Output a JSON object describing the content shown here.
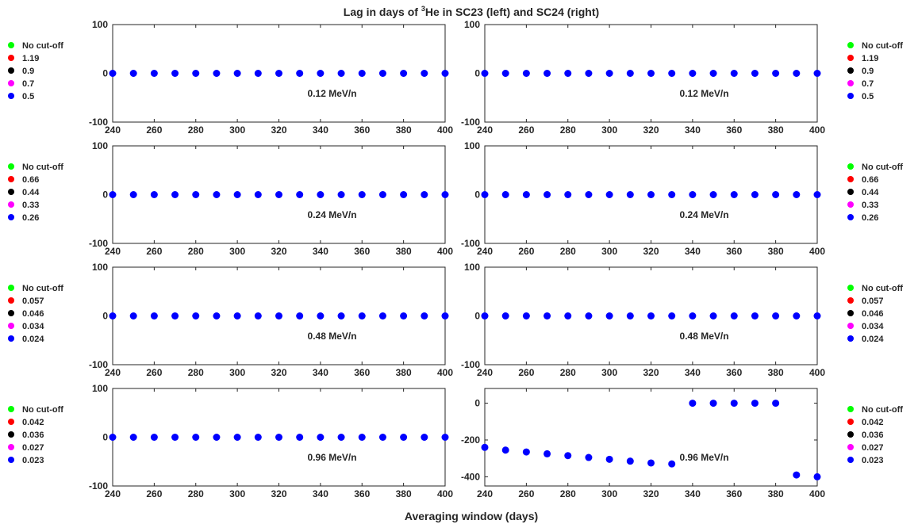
{
  "figure": {
    "title_prefix": "Lag in days of ",
    "title_sup": "3",
    "title_suffix": "He in SC23 (left) and SC24 (right)",
    "xlabel": "Averaging window (days)"
  },
  "legend_colors": [
    "#00ff00",
    "#ff0000",
    "#000000",
    "#ff00ff",
    "#0000ff"
  ],
  "chart_data": [
    {
      "type": "scatter",
      "row": 0,
      "col": 0,
      "energy_label": "0.12 MeV/n",
      "legend": [
        "No cut-off",
        "1.19",
        "0.9",
        "0.7",
        "0.5"
      ],
      "x": [
        240,
        250,
        260,
        270,
        280,
        290,
        300,
        310,
        320,
        330,
        340,
        350,
        360,
        370,
        380,
        390,
        400
      ],
      "y": [
        0,
        0,
        0,
        0,
        0,
        0,
        0,
        0,
        0,
        0,
        0,
        0,
        0,
        0,
        0,
        0,
        0
      ],
      "xlim": [
        240,
        400
      ],
      "ylim": [
        -100,
        100
      ],
      "xticks": [
        240,
        260,
        280,
        300,
        320,
        340,
        360,
        380,
        400
      ],
      "yticks": [
        -100,
        0,
        100
      ]
    },
    {
      "type": "scatter",
      "row": 0,
      "col": 1,
      "energy_label": "0.12 MeV/n",
      "legend": [
        "No cut-off",
        "1.19",
        "0.9",
        "0.7",
        "0.5"
      ],
      "x": [
        240,
        250,
        260,
        270,
        280,
        290,
        300,
        310,
        320,
        330,
        340,
        350,
        360,
        370,
        380,
        390,
        400
      ],
      "y": [
        0,
        0,
        0,
        0,
        0,
        0,
        0,
        0,
        0,
        0,
        0,
        0,
        0,
        0,
        0,
        0,
        0
      ],
      "xlim": [
        240,
        400
      ],
      "ylim": [
        -100,
        100
      ],
      "xticks": [
        240,
        260,
        280,
        300,
        320,
        340,
        360,
        380,
        400
      ],
      "yticks": [
        -100,
        0,
        100
      ]
    },
    {
      "type": "scatter",
      "row": 1,
      "col": 0,
      "energy_label": "0.24 MeV/n",
      "legend": [
        "No cut-off",
        "0.66",
        "0.44",
        "0.33",
        "0.26"
      ],
      "x": [
        240,
        250,
        260,
        270,
        280,
        290,
        300,
        310,
        320,
        330,
        340,
        350,
        360,
        370,
        380,
        390,
        400
      ],
      "y": [
        0,
        0,
        0,
        0,
        0,
        0,
        0,
        0,
        0,
        0,
        0,
        0,
        0,
        0,
        0,
        0,
        0
      ],
      "xlim": [
        240,
        400
      ],
      "ylim": [
        -100,
        100
      ],
      "xticks": [
        240,
        260,
        280,
        300,
        320,
        340,
        360,
        380,
        400
      ],
      "yticks": [
        -100,
        0,
        100
      ]
    },
    {
      "type": "scatter",
      "row": 1,
      "col": 1,
      "energy_label": "0.24 MeV/n",
      "legend": [
        "No cut-off",
        "0.66",
        "0.44",
        "0.33",
        "0.26"
      ],
      "x": [
        240,
        250,
        260,
        270,
        280,
        290,
        300,
        310,
        320,
        330,
        340,
        350,
        360,
        370,
        380,
        390,
        400
      ],
      "y": [
        0,
        0,
        0,
        0,
        0,
        0,
        0,
        0,
        0,
        0,
        0,
        0,
        0,
        0,
        0,
        0,
        0
      ],
      "xlim": [
        240,
        400
      ],
      "ylim": [
        -100,
        100
      ],
      "xticks": [
        240,
        260,
        280,
        300,
        320,
        340,
        360,
        380,
        400
      ],
      "yticks": [
        -100,
        0,
        100
      ]
    },
    {
      "type": "scatter",
      "row": 2,
      "col": 0,
      "energy_label": "0.48 MeV/n",
      "legend": [
        "No cut-off",
        "0.057",
        "0.046",
        "0.034",
        "0.024"
      ],
      "x": [
        240,
        250,
        260,
        270,
        280,
        290,
        300,
        310,
        320,
        330,
        340,
        350,
        360,
        370,
        380,
        390,
        400
      ],
      "y": [
        0,
        0,
        0,
        0,
        0,
        0,
        0,
        0,
        0,
        0,
        0,
        0,
        0,
        0,
        0,
        0,
        0
      ],
      "xlim": [
        240,
        400
      ],
      "ylim": [
        -100,
        100
      ],
      "xticks": [
        240,
        260,
        280,
        300,
        320,
        340,
        360,
        380,
        400
      ],
      "yticks": [
        -100,
        0,
        100
      ]
    },
    {
      "type": "scatter",
      "row": 2,
      "col": 1,
      "energy_label": "0.48 MeV/n",
      "legend": [
        "No cut-off",
        "0.057",
        "0.046",
        "0.034",
        "0.024"
      ],
      "x": [
        240,
        250,
        260,
        270,
        280,
        290,
        300,
        310,
        320,
        330,
        340,
        350,
        360,
        370,
        380,
        390,
        400
      ],
      "y": [
        0,
        0,
        0,
        0,
        0,
        0,
        0,
        0,
        0,
        0,
        0,
        0,
        0,
        0,
        0,
        0,
        0
      ],
      "xlim": [
        240,
        400
      ],
      "ylim": [
        -100,
        100
      ],
      "xticks": [
        240,
        260,
        280,
        300,
        320,
        340,
        360,
        380,
        400
      ],
      "yticks": [
        -100,
        0,
        100
      ]
    },
    {
      "type": "scatter",
      "row": 3,
      "col": 0,
      "energy_label": "0.96 MeV/n",
      "legend": [
        "No cut-off",
        "0.042",
        "0.036",
        "0.027",
        "0.023"
      ],
      "x": [
        240,
        250,
        260,
        270,
        280,
        290,
        300,
        310,
        320,
        330,
        340,
        350,
        360,
        370,
        380,
        390,
        400
      ],
      "y": [
        0,
        0,
        0,
        0,
        0,
        0,
        0,
        0,
        0,
        0,
        0,
        0,
        0,
        0,
        0,
        0,
        0
      ],
      "xlim": [
        240,
        400
      ],
      "ylim": [
        -100,
        100
      ],
      "xticks": [
        240,
        260,
        280,
        300,
        320,
        340,
        360,
        380,
        400
      ],
      "yticks": [
        -100,
        0,
        100
      ]
    },
    {
      "type": "scatter",
      "row": 3,
      "col": 1,
      "energy_label": "0.96 MeV/n",
      "legend": [
        "No cut-off",
        "0.042",
        "0.036",
        "0.027",
        "0.023"
      ],
      "x": [
        240,
        250,
        260,
        270,
        280,
        290,
        300,
        310,
        320,
        330,
        340,
        350,
        360,
        370,
        380,
        390,
        400
      ],
      "y": [
        -240,
        -255,
        -265,
        -275,
        -285,
        -295,
        -305,
        -315,
        -325,
        -330,
        0,
        0,
        0,
        0,
        0,
        -390,
        -400
      ],
      "xlim": [
        240,
        400
      ],
      "ylim": [
        -450,
        80
      ],
      "xticks": [
        240,
        260,
        280,
        300,
        320,
        340,
        360,
        380,
        400
      ],
      "yticks": [
        -400,
        -200,
        0
      ]
    }
  ]
}
